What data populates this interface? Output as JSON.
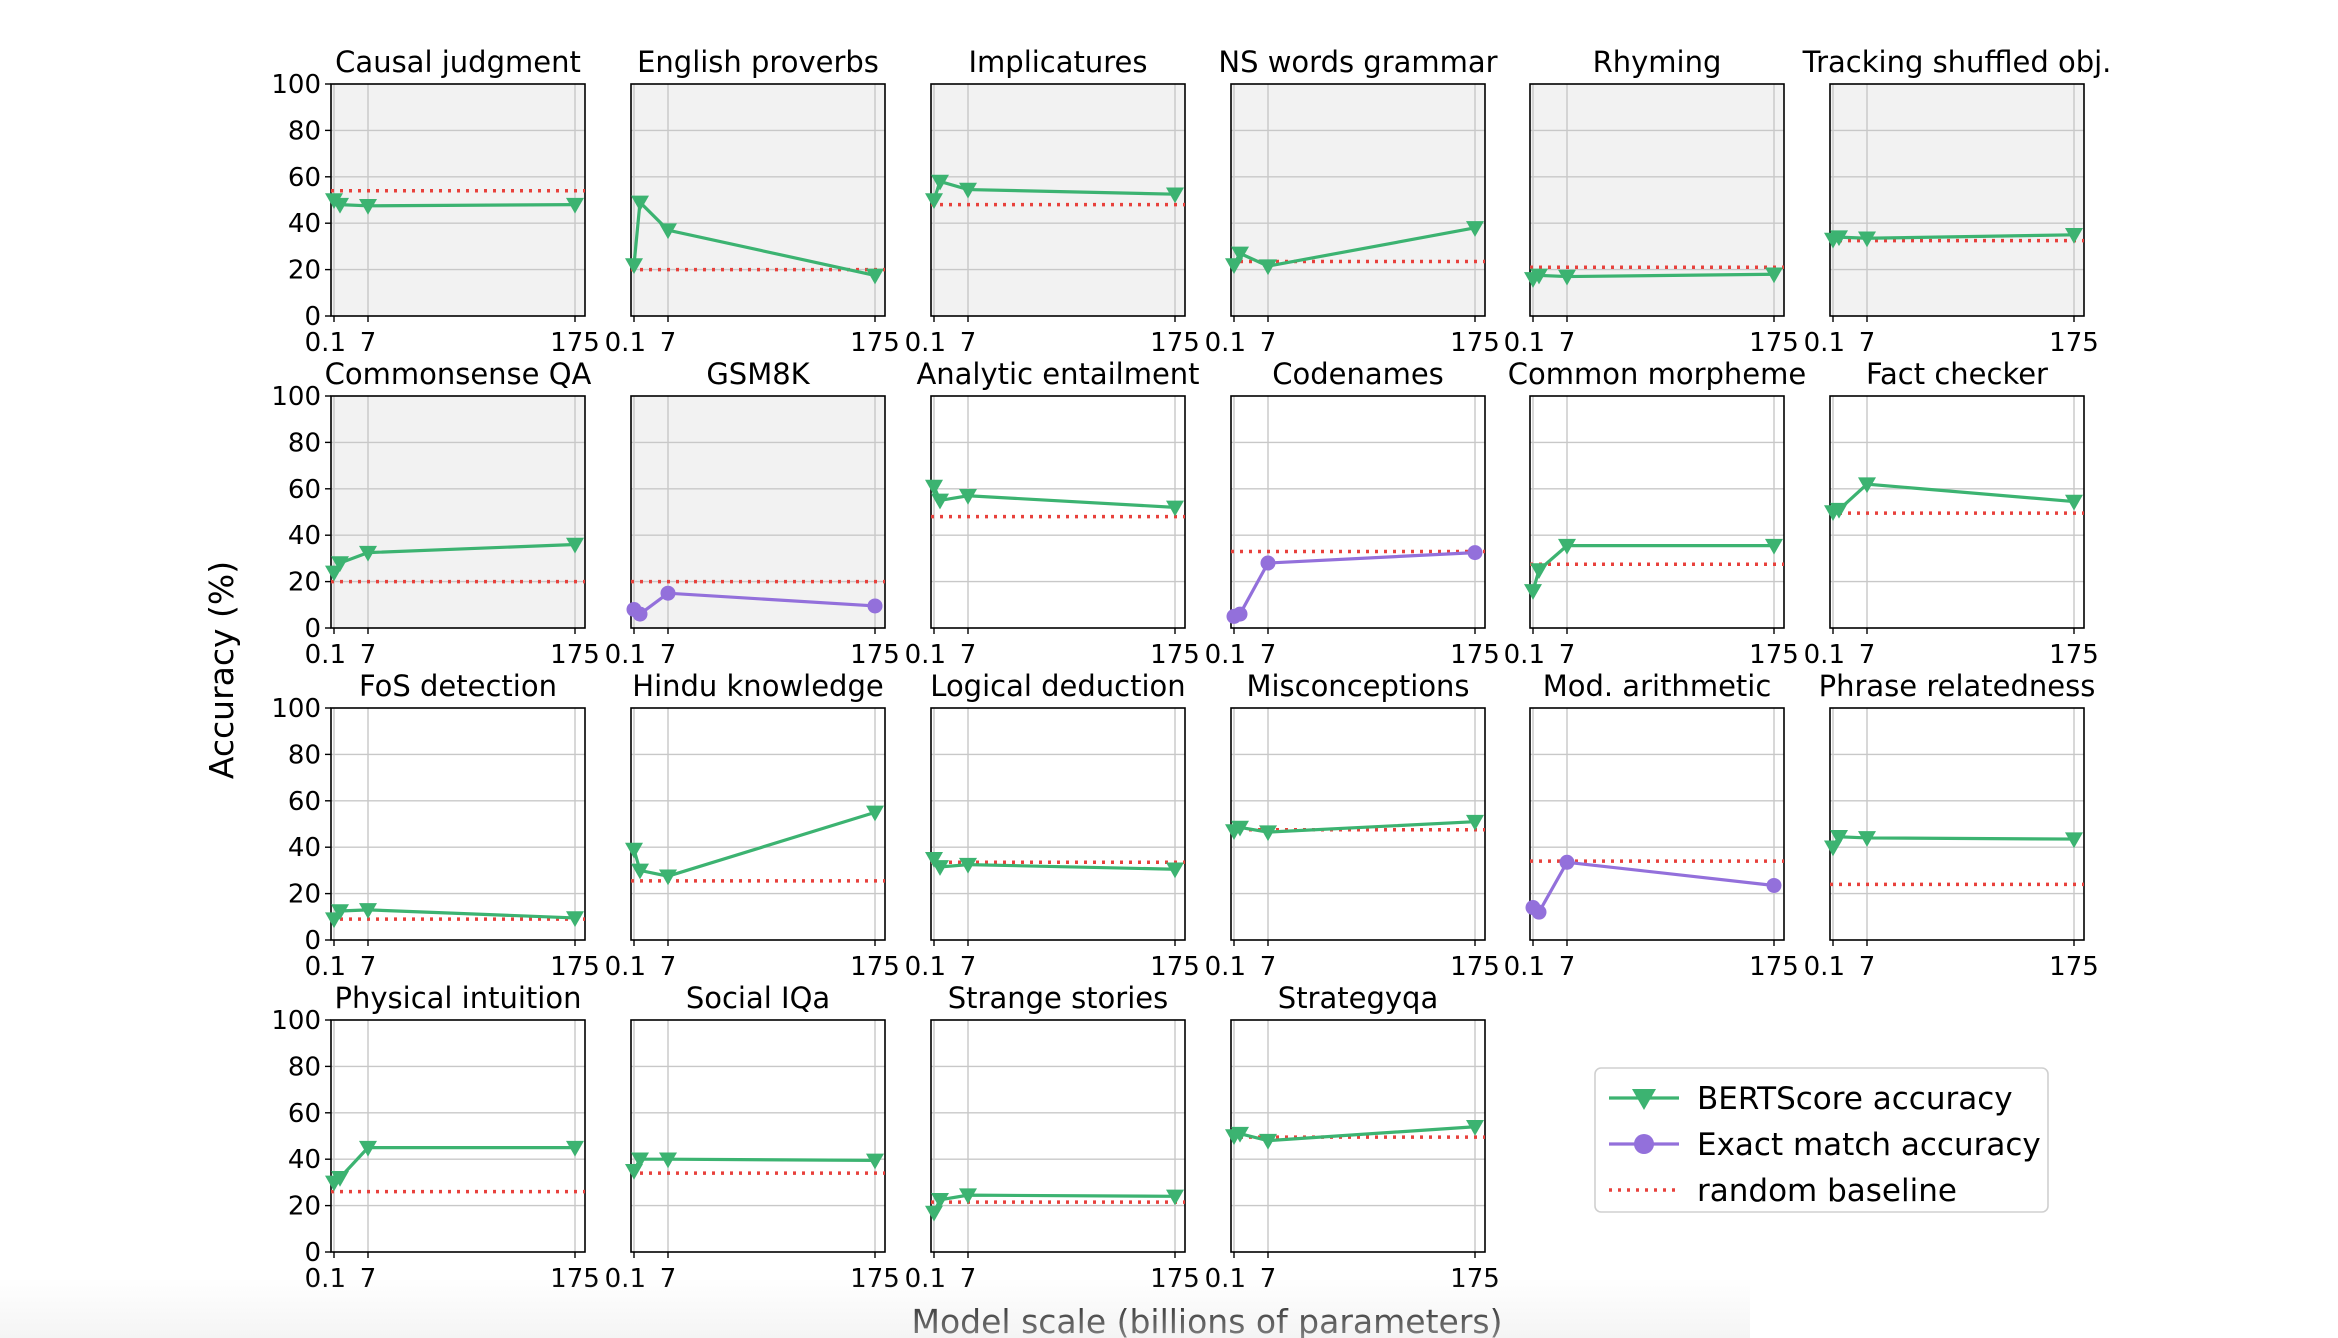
{
  "figure": {
    "ylabel": "Accuracy (%)",
    "xlabel": "Model scale (billions of parameters)",
    "x_ticks": [
      "0.1",
      "7",
      "175"
    ],
    "y_ticks": [
      "0",
      "20",
      "40",
      "60",
      "80",
      "100"
    ]
  },
  "legend": {
    "bert": "BERTScore accuracy",
    "exact": "Exact match accuracy",
    "random": "random baseline"
  },
  "colors": {
    "bert": "#3cb371",
    "exact": "#9370db",
    "random": "#e8413c",
    "shaded_bg": "#f2f2f2",
    "grid": "#c8c8c8"
  },
  "chart_data": [
    {
      "type": "line",
      "title": "Causal judgment",
      "x": [
        0.1,
        1.5,
        7,
        175
      ],
      "shaded": true,
      "metric": "bert",
      "values": [
        50,
        48,
        47.5,
        48
      ],
      "baseline": 54,
      "ylim": [
        0,
        100
      ]
    },
    {
      "type": "line",
      "title": "English proverbs",
      "x": [
        0.1,
        1.5,
        7,
        175
      ],
      "shaded": true,
      "metric": "bert",
      "values": [
        22,
        49,
        37,
        17.5
      ],
      "baseline": 20,
      "ylim": [
        0,
        100
      ]
    },
    {
      "type": "line",
      "title": "Implicatures",
      "x": [
        0.1,
        1.5,
        7,
        175
      ],
      "shaded": true,
      "metric": "bert",
      "values": [
        50,
        58,
        54.5,
        52.5
      ],
      "baseline": 48,
      "ylim": [
        0,
        100
      ]
    },
    {
      "type": "line",
      "title": "NS words grammar",
      "x": [
        0.1,
        1.5,
        7,
        175
      ],
      "shaded": true,
      "metric": "bert",
      "values": [
        22,
        27,
        21.5,
        38
      ],
      "baseline": 23.5,
      "ylim": [
        0,
        100
      ]
    },
    {
      "type": "line",
      "title": "Rhyming",
      "x": [
        0.1,
        1.5,
        7,
        175
      ],
      "shaded": true,
      "metric": "bert",
      "values": [
        16,
        17.5,
        17,
        18
      ],
      "baseline": 21,
      "ylim": [
        0,
        100
      ]
    },
    {
      "type": "line",
      "title": "Tracking shuffled obj.",
      "x": [
        0.1,
        1.5,
        7,
        175
      ],
      "shaded": true,
      "metric": "bert",
      "values": [
        33,
        34,
        33.5,
        35
      ],
      "baseline": 32.5,
      "ylim": [
        0,
        100
      ]
    },
    {
      "type": "line",
      "title": "Commonsense QA",
      "x": [
        0.1,
        1.5,
        7,
        175
      ],
      "shaded": true,
      "metric": "bert",
      "values": [
        24,
        28,
        32.5,
        36
      ],
      "baseline": 20,
      "ylim": [
        0,
        100
      ]
    },
    {
      "type": "line",
      "title": "GSM8K",
      "x": [
        0.1,
        1.5,
        7,
        175
      ],
      "shaded": true,
      "metric": "exact",
      "values": [
        8,
        6,
        15,
        9.5
      ],
      "baseline": 20,
      "ylim": [
        0,
        100
      ]
    },
    {
      "type": "line",
      "title": "Analytic entailment",
      "x": [
        0.1,
        1.5,
        7,
        175
      ],
      "shaded": false,
      "metric": "bert",
      "values": [
        61,
        55,
        57,
        52
      ],
      "baseline": 48,
      "ylim": [
        0,
        100
      ]
    },
    {
      "type": "line",
      "title": "Codenames",
      "x": [
        0.1,
        1.5,
        7,
        175
      ],
      "shaded": false,
      "metric": "exact",
      "values": [
        5,
        6,
        28,
        32.5
      ],
      "baseline": 33,
      "ylim": [
        0,
        100
      ]
    },
    {
      "type": "line",
      "title": "Common morpheme",
      "x": [
        0.1,
        1.5,
        7,
        175
      ],
      "shaded": false,
      "metric": "bert",
      "values": [
        16,
        25,
        35.5,
        35.5
      ],
      "baseline": 27.5,
      "ylim": [
        0,
        100
      ]
    },
    {
      "type": "line",
      "title": "Fact checker",
      "x": [
        0.1,
        1.5,
        7,
        175
      ],
      "shaded": false,
      "metric": "bert",
      "values": [
        50,
        51,
        62,
        54.5
      ],
      "baseline": 49.5,
      "ylim": [
        0,
        100
      ]
    },
    {
      "type": "line",
      "title": "FoS detection",
      "x": [
        0.1,
        1.5,
        7,
        175
      ],
      "shaded": false,
      "metric": "bert",
      "values": [
        9,
        12.5,
        13,
        9.5
      ],
      "baseline": 9,
      "ylim": [
        0,
        100
      ]
    },
    {
      "type": "line",
      "title": "Hindu knowledge",
      "x": [
        0.1,
        1.5,
        7,
        175
      ],
      "shaded": false,
      "metric": "bert",
      "values": [
        39,
        30,
        27.5,
        55
      ],
      "baseline": 25.5,
      "ylim": [
        0,
        100
      ]
    },
    {
      "type": "line",
      "title": "Logical deduction",
      "x": [
        0.1,
        1.5,
        7,
        175
      ],
      "shaded": false,
      "metric": "bert",
      "values": [
        35,
        31.5,
        32.5,
        30.5
      ],
      "baseline": 33.5,
      "ylim": [
        0,
        100
      ]
    },
    {
      "type": "line",
      "title": "Misconceptions",
      "x": [
        0.1,
        1.5,
        7,
        175
      ],
      "shaded": false,
      "metric": "bert",
      "values": [
        47,
        48.5,
        46.5,
        51
      ],
      "baseline": 47.5,
      "ylim": [
        0,
        100
      ]
    },
    {
      "type": "line",
      "title": "Mod. arithmetic",
      "x": [
        0.1,
        1.5,
        7,
        175
      ],
      "shaded": false,
      "metric": "exact",
      "values": [
        14,
        12,
        33.5,
        23.5
      ],
      "baseline": 34,
      "ylim": [
        0,
        100
      ]
    },
    {
      "type": "line",
      "title": "Phrase relatedness",
      "x": [
        0.1,
        1.5,
        7,
        175
      ],
      "shaded": false,
      "metric": "bert",
      "values": [
        40,
        44.5,
        44,
        43.5
      ],
      "baseline": 24,
      "ylim": [
        0,
        100
      ]
    },
    {
      "type": "line",
      "title": "Physical intuition",
      "x": [
        0.1,
        1.5,
        7,
        175
      ],
      "shaded": false,
      "metric": "bert",
      "values": [
        30,
        32,
        45,
        45
      ],
      "baseline": 26,
      "ylim": [
        0,
        100
      ]
    },
    {
      "type": "line",
      "title": "Social IQa",
      "x": [
        0.1,
        1.5,
        7,
        175
      ],
      "shaded": false,
      "metric": "bert",
      "values": [
        35,
        40,
        40,
        39.5
      ],
      "baseline": 34,
      "ylim": [
        0,
        100
      ]
    },
    {
      "type": "line",
      "title": "Strange stories",
      "x": [
        0.1,
        1.5,
        7,
        175
      ],
      "shaded": false,
      "metric": "bert",
      "values": [
        17,
        22.5,
        24.5,
        24
      ],
      "baseline": 21.5,
      "ylim": [
        0,
        100
      ]
    },
    {
      "type": "line",
      "title": "Strategyqa",
      "x": [
        0.1,
        1.5,
        7,
        175
      ],
      "shaded": false,
      "metric": "bert",
      "values": [
        50,
        51,
        48,
        54
      ],
      "baseline": 49.5,
      "ylim": [
        0,
        100
      ]
    }
  ]
}
